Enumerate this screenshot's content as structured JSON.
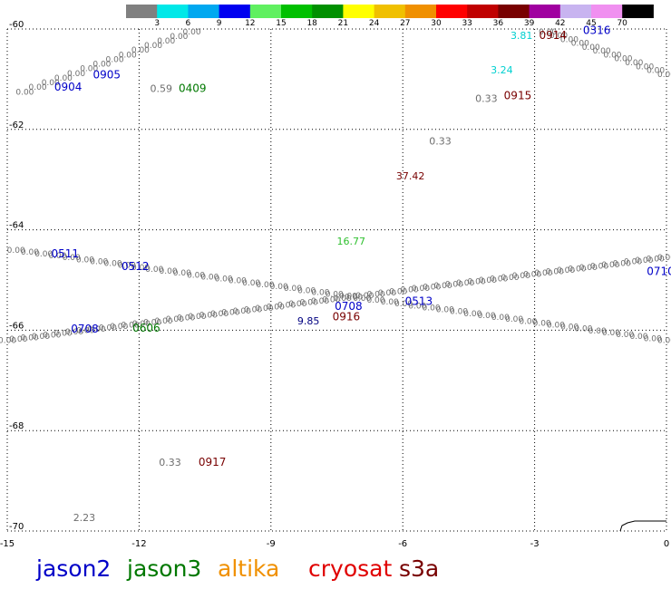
{
  "colorbar": {
    "ticks": [
      "3",
      "6",
      "9",
      "12",
      "15",
      "18",
      "21",
      "24",
      "27",
      "30",
      "33",
      "36",
      "39",
      "42",
      "45",
      "70"
    ],
    "colors": [
      "#808080",
      "#00e8e8",
      "#00a8f0",
      "#0000f0",
      "#60f060",
      "#00c000",
      "#009000",
      "#ffff00",
      "#f0c000",
      "#f09000",
      "#ff0000",
      "#c00000",
      "#780000",
      "#a000a0",
      "#c8b4f0",
      "#f090f0",
      "#000000"
    ]
  },
  "axes": {
    "x_ticks": [
      "-15",
      "-12",
      "-9",
      "-6",
      "-3",
      "0"
    ],
    "y_ticks": [
      "-60",
      "-62",
      "-64",
      "-66",
      "-68",
      "-70"
    ],
    "x_range": [
      -15,
      0
    ],
    "y_range": [
      -70,
      -60
    ]
  },
  "colors": {
    "jason2": "#0000c8",
    "jason3": "#007800",
    "altika": "#f09000",
    "cryosat": "#e00000",
    "s3a": "#780000",
    "track": "#808080",
    "cyan": "#00d0d0",
    "green_val": "#30c030"
  },
  "missions": [
    {
      "name": "jason2",
      "color": "#0000c8"
    },
    {
      "name": "jason3",
      "color": "#007800"
    },
    {
      "name": "altika",
      "color": "#f09000"
    },
    {
      "name": "cryosat",
      "color": "#e00000"
    },
    {
      "name": "s3a",
      "color": "#780000"
    }
  ],
  "track_labels": [
    {
      "text": "0904",
      "lon": -13.93,
      "lat": -61.23,
      "color": "#0000c8"
    },
    {
      "text": "0905",
      "lon": -13.05,
      "lat": -60.98,
      "color": "#0000c8"
    },
    {
      "text": "0409",
      "lon": -11.1,
      "lat": -61.25,
      "color": "#007800"
    },
    {
      "text": "0914",
      "lon": -2.9,
      "lat": -60.2,
      "color": "#780000"
    },
    {
      "text": "0316",
      "lon": -1.9,
      "lat": -60.1,
      "color": "#0000c8"
    },
    {
      "text": "0915",
      "lon": -3.7,
      "lat": -61.4,
      "color": "#780000"
    },
    {
      "text": "0511",
      "lon": -14.0,
      "lat": -64.55,
      "color": "#0000c8"
    },
    {
      "text": "0512",
      "lon": -12.4,
      "lat": -64.8,
      "color": "#0000c8"
    },
    {
      "text": "0606",
      "lon": -12.15,
      "lat": -66.03,
      "color": "#007800"
    },
    {
      "text": "0708",
      "lon": -13.55,
      "lat": -66.05,
      "color": "#0000c8"
    },
    {
      "text": "0708",
      "lon": -7.55,
      "lat": -65.6,
      "color": "#0000c8"
    },
    {
      "text": "0916",
      "lon": -7.6,
      "lat": -65.8,
      "color": "#780000"
    },
    {
      "text": "0513",
      "lon": -5.95,
      "lat": -65.5,
      "color": "#0000c8"
    },
    {
      "text": "0710",
      "lon": -0.45,
      "lat": -64.9,
      "color": "#0000c8"
    },
    {
      "text": "0917",
      "lon": -10.65,
      "lat": -68.7,
      "color": "#780000"
    }
  ],
  "value_labels": [
    {
      "text": "0.59",
      "lon": -11.75,
      "lat": -61.25,
      "color": "#6e6e6e"
    },
    {
      "text": "3.81",
      "lon": -3.55,
      "lat": -60.2,
      "color": "#00d0d0"
    },
    {
      "text": "3.24",
      "lon": -4.0,
      "lat": -60.88,
      "color": "#00d0d0"
    },
    {
      "text": "0.33",
      "lon": -4.35,
      "lat": -61.45,
      "color": "#6e6e6e"
    },
    {
      "text": "0.33",
      "lon": -5.4,
      "lat": -62.3,
      "color": "#6e6e6e"
    },
    {
      "text": "37.42",
      "lon": -6.15,
      "lat": -63.0,
      "color": "#780000"
    },
    {
      "text": "16.77",
      "lon": -7.5,
      "lat": -64.3,
      "color": "#30c030"
    },
    {
      "text": "9.85",
      "lon": -8.4,
      "lat": -65.88,
      "color": "#000080"
    },
    {
      "text": "0.33",
      "lon": -11.55,
      "lat": -68.7,
      "color": "#6e6e6e"
    },
    {
      "text": "2.23",
      "lon": -13.5,
      "lat": -69.8,
      "color": "#6e6e6e"
    }
  ],
  "tracks": [
    {
      "name": "north-track-west",
      "from": [
        -14.6,
        -61.25
      ],
      "to": [
        -10.8,
        -60.05
      ],
      "count": 14,
      "value": "0.00"
    },
    {
      "name": "north-track-east",
      "from": [
        -2.7,
        -60.05
      ],
      "to": [
        0.0,
        -60.9
      ],
      "count": 12,
      "value": "0.00"
    },
    {
      "name": "track-0511-0513",
      "from": [
        -14.8,
        -64.4
      ],
      "to": [
        0.0,
        -66.2
      ],
      "count": 48,
      "value": "0.00"
    },
    {
      "name": "track-0708-0710",
      "from": [
        -15.0,
        -66.2
      ],
      "to": [
        0.0,
        -64.55
      ],
      "count": 60,
      "value": "0.00"
    }
  ]
}
